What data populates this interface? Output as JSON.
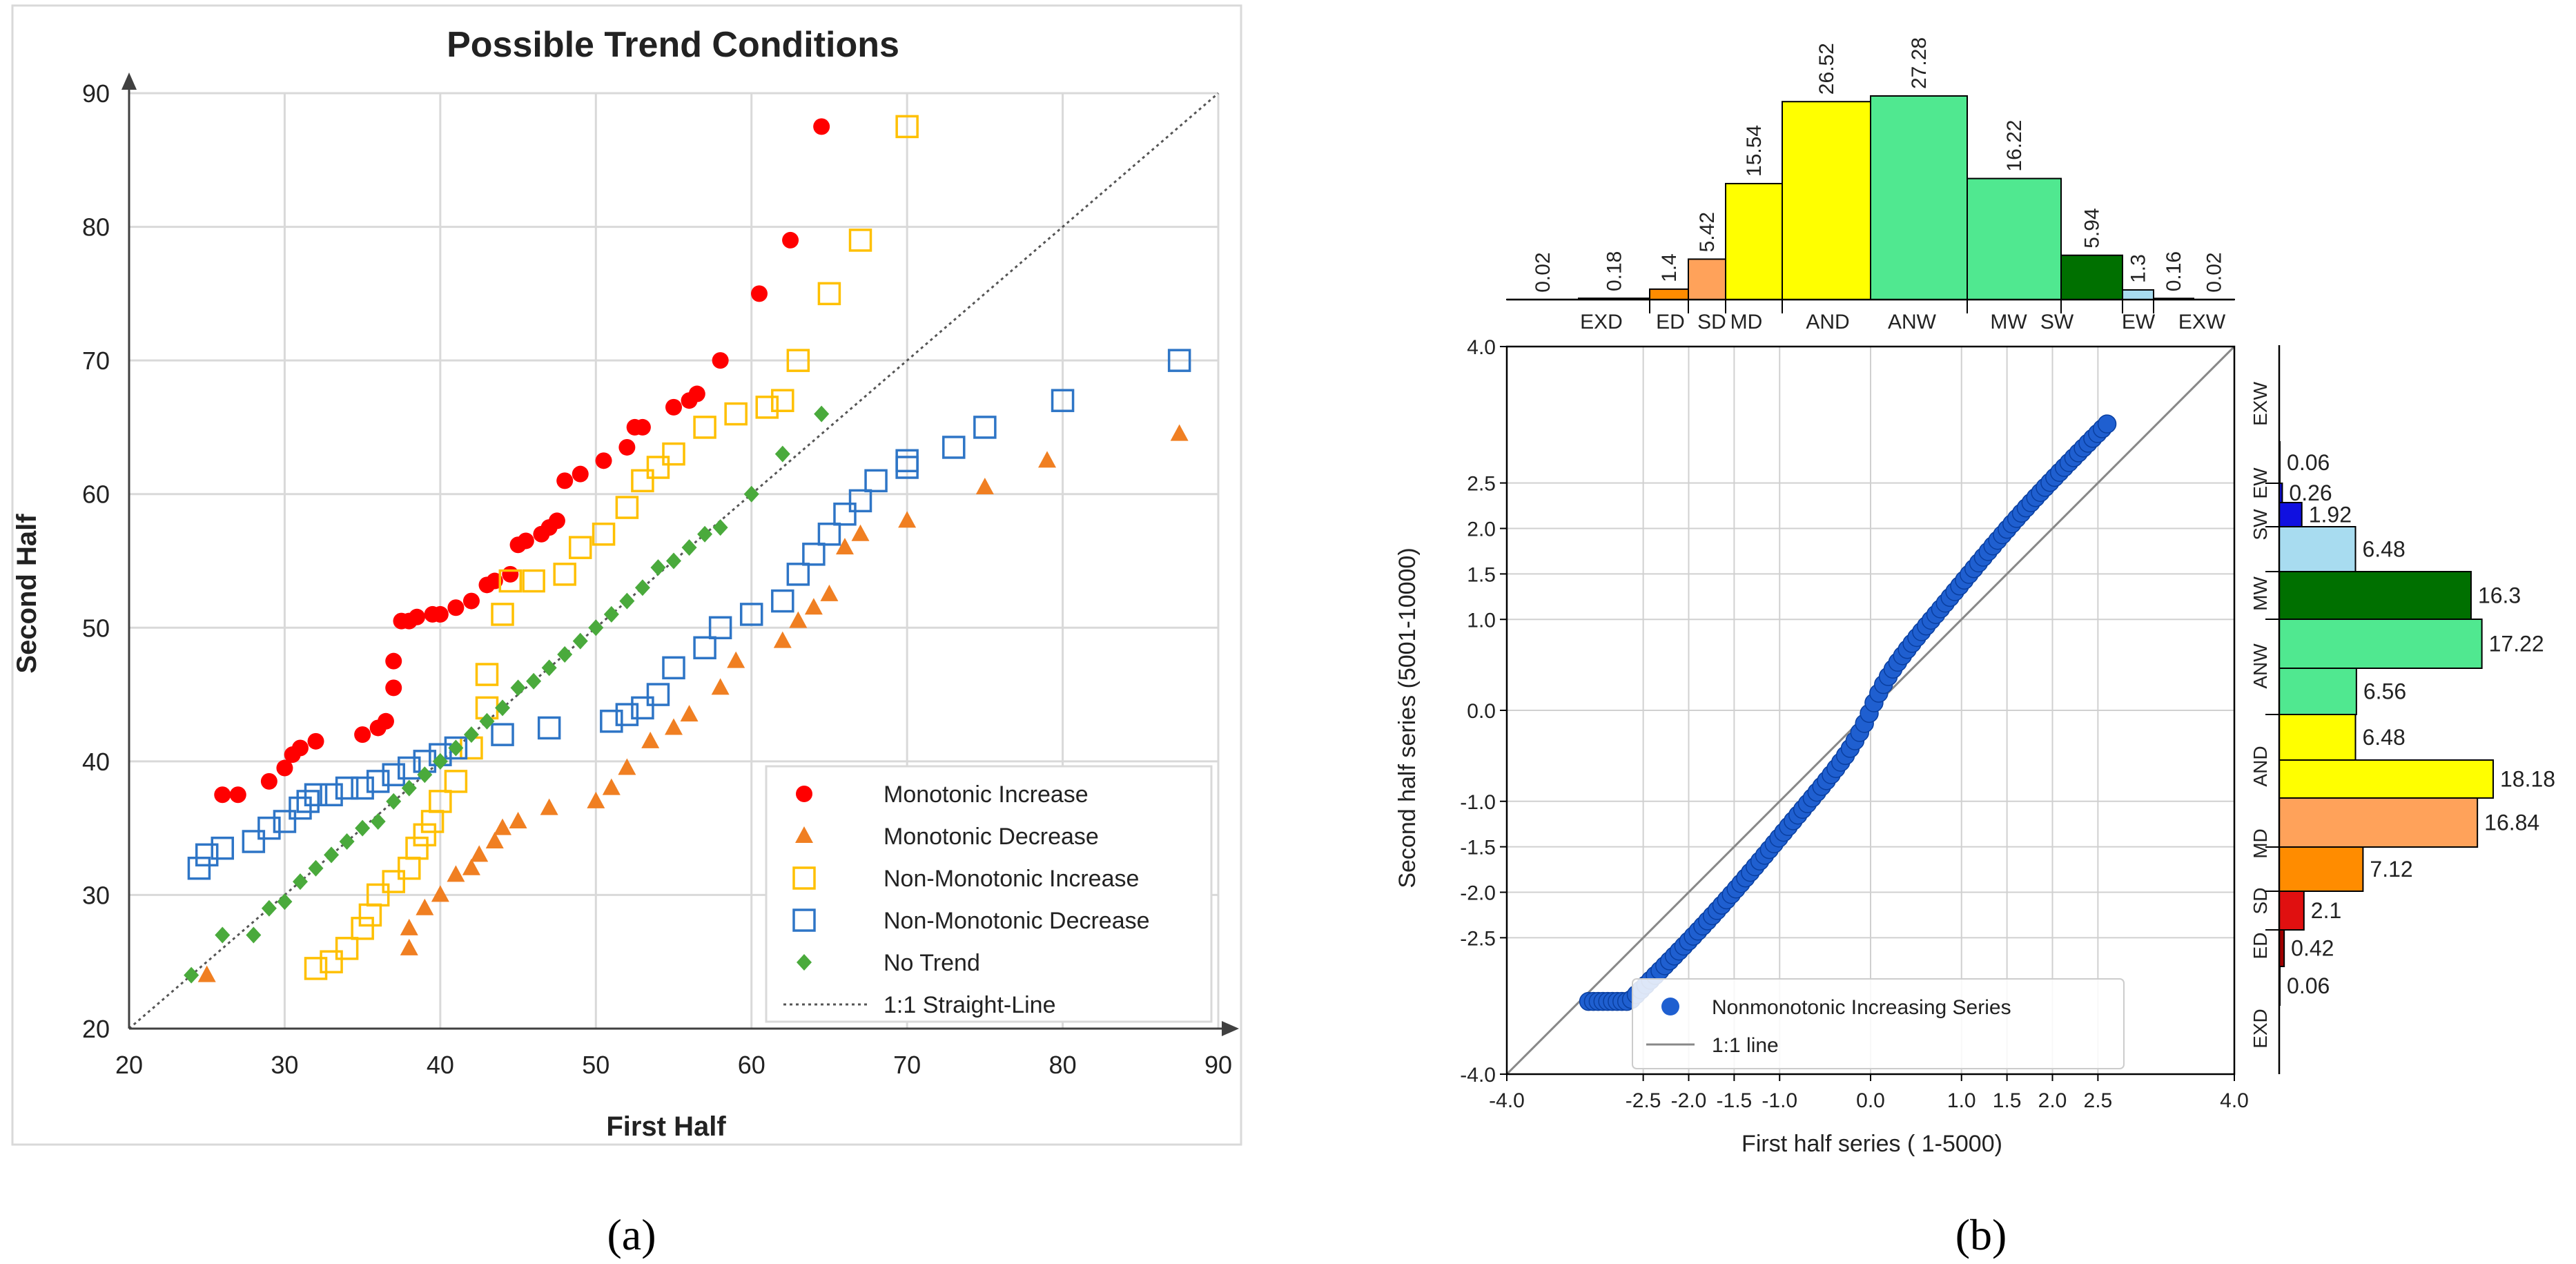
{
  "panel_labels": {
    "a": "(a)",
    "b": "(b)"
  },
  "chart_data": [
    {
      "type": "scatter",
      "title": "Possible Trend Conditions",
      "xlabel": "First Half",
      "ylabel": "Second Half",
      "xlim": [
        20,
        90
      ],
      "ylim": [
        20,
        90
      ],
      "xticks": [
        "20",
        "30",
        "40",
        "50",
        "60",
        "70",
        "80",
        "90"
      ],
      "yticks": [
        "20",
        "30",
        "40",
        "50",
        "60",
        "70",
        "80",
        "90"
      ],
      "grid": true,
      "legend_position": "bottom-right",
      "reference_line": {
        "name": "1:1 Straight-Line",
        "x": [
          20,
          90
        ],
        "y": [
          20,
          90
        ],
        "color": "#555555",
        "style": "dotted"
      },
      "series": [
        {
          "name": "Monotonic Increase",
          "marker": "circle",
          "color": "#ff0000",
          "points": [
            [
              26,
              37.5
            ],
            [
              27,
              37.5
            ],
            [
              29,
              38.5
            ],
            [
              30,
              39.5
            ],
            [
              30.5,
              40.5
            ],
            [
              31,
              41
            ],
            [
              32,
              41.5
            ],
            [
              35,
              42
            ],
            [
              36,
              42.5
            ],
            [
              36.5,
              43
            ],
            [
              37,
              45.5
            ],
            [
              37,
              47.5
            ],
            [
              37.5,
              50.5
            ],
            [
              38,
              50.5
            ],
            [
              38.5,
              50.8
            ],
            [
              39.5,
              51
            ],
            [
              40,
              51
            ],
            [
              41,
              51.5
            ],
            [
              42,
              52
            ],
            [
              43,
              53.2
            ],
            [
              43.5,
              53.5
            ],
            [
              44.5,
              54
            ],
            [
              45,
              56.2
            ],
            [
              45.5,
              56.5
            ],
            [
              46.5,
              57
            ],
            [
              47,
              57.5
            ],
            [
              47.5,
              58
            ],
            [
              48,
              61
            ],
            [
              49,
              61.5
            ],
            [
              50.5,
              62.5
            ],
            [
              52,
              63.5
            ],
            [
              52.5,
              65
            ],
            [
              53,
              65
            ],
            [
              55,
              66.5
            ],
            [
              56,
              67
            ],
            [
              56.5,
              67.5
            ],
            [
              58,
              70
            ],
            [
              60.5,
              75
            ],
            [
              62.5,
              79
            ],
            [
              64.5,
              87.5
            ]
          ]
        },
        {
          "name": "Monotonic Decrease",
          "marker": "triangle",
          "color": "#f07f22",
          "points": [
            [
              25,
              24
            ],
            [
              38,
              26
            ],
            [
              38,
              27.5
            ],
            [
              39,
              29
            ],
            [
              40,
              30
            ],
            [
              41,
              31.5
            ],
            [
              42,
              32
            ],
            [
              42.5,
              33
            ],
            [
              43.5,
              34
            ],
            [
              44,
              35
            ],
            [
              45,
              35.5
            ],
            [
              47,
              36.5
            ],
            [
              50,
              37
            ],
            [
              51,
              38
            ],
            [
              52,
              39.5
            ],
            [
              53.5,
              41.5
            ],
            [
              55,
              42.5
            ],
            [
              56,
              43.5
            ],
            [
              58,
              45.5
            ],
            [
              59,
              47.5
            ],
            [
              62,
              49
            ],
            [
              63,
              50.5
            ],
            [
              64,
              51.5
            ],
            [
              65,
              52.5
            ],
            [
              66,
              56
            ],
            [
              67,
              57
            ],
            [
              70,
              58
            ],
            [
              75,
              60.5
            ],
            [
              79,
              62.5
            ],
            [
              87.5,
              64.5
            ]
          ]
        },
        {
          "name": "Non-Monotonic Increase",
          "marker": "square",
          "color": "#ffc000",
          "points": [
            [
              32,
              24.5
            ],
            [
              33,
              25
            ],
            [
              34,
              26
            ],
            [
              35,
              27.5
            ],
            [
              35.5,
              28.5
            ],
            [
              36,
              30
            ],
            [
              37,
              31
            ],
            [
              38,
              32
            ],
            [
              38.5,
              33.5
            ],
            [
              39,
              34.5
            ],
            [
              39.5,
              35.5
            ],
            [
              40,
              37
            ],
            [
              41,
              38.5
            ],
            [
              42,
              41
            ],
            [
              43,
              44
            ],
            [
              43,
              46.5
            ],
            [
              44,
              51
            ],
            [
              44.5,
              53.5
            ],
            [
              46,
              53.5
            ],
            [
              48,
              54
            ],
            [
              49,
              56
            ],
            [
              50.5,
              57
            ],
            [
              52,
              59
            ],
            [
              53,
              61
            ],
            [
              54,
              62
            ],
            [
              55,
              63
            ],
            [
              57,
              65
            ],
            [
              59,
              66
            ],
            [
              61,
              66.5
            ],
            [
              62,
              67
            ],
            [
              63,
              70
            ],
            [
              65,
              75
            ],
            [
              67,
              79
            ],
            [
              70,
              87.5
            ]
          ]
        },
        {
          "name": "Non-Monotonic Decrease",
          "marker": "square",
          "color": "#2e75c6",
          "points": [
            [
              24.5,
              32
            ],
            [
              25,
              33
            ],
            [
              26,
              33.5
            ],
            [
              28,
              34
            ],
            [
              29,
              35
            ],
            [
              30,
              35.5
            ],
            [
              31,
              36.5
            ],
            [
              31.5,
              37
            ],
            [
              32,
              37.5
            ],
            [
              33,
              37.5
            ],
            [
              34,
              38
            ],
            [
              35,
              38
            ],
            [
              36,
              38.5
            ],
            [
              37,
              39
            ],
            [
              38,
              39.5
            ],
            [
              39,
              40
            ],
            [
              40,
              40.5
            ],
            [
              41,
              41
            ],
            [
              44,
              42
            ],
            [
              47,
              42.5
            ],
            [
              51,
              43
            ],
            [
              52,
              43.5
            ],
            [
              53,
              44
            ],
            [
              54,
              45
            ],
            [
              55,
              47
            ],
            [
              57,
              48.5
            ],
            [
              58,
              50
            ],
            [
              60,
              51
            ],
            [
              62,
              52
            ],
            [
              63,
              54
            ],
            [
              64,
              55.5
            ],
            [
              65,
              57
            ],
            [
              66,
              58.5
            ],
            [
              67,
              59.5
            ],
            [
              68,
              61
            ],
            [
              70,
              62
            ],
            [
              70,
              62.5
            ],
            [
              73,
              63.5
            ],
            [
              75,
              65
            ],
            [
              80,
              67
            ],
            [
              87.5,
              70
            ]
          ]
        },
        {
          "name": "No Trend",
          "marker": "diamond",
          "color": "#4aaa3c",
          "points": [
            [
              24,
              24
            ],
            [
              26,
              27
            ],
            [
              28,
              27
            ],
            [
              29,
              29
            ],
            [
              30,
              29.5
            ],
            [
              31,
              31
            ],
            [
              32,
              32
            ],
            [
              33,
              33
            ],
            [
              34,
              34
            ],
            [
              35,
              35
            ],
            [
              36,
              35.5
            ],
            [
              37,
              37
            ],
            [
              38,
              38
            ],
            [
              39,
              39
            ],
            [
              40,
              40
            ],
            [
              41,
              41
            ],
            [
              42,
              42
            ],
            [
              43,
              43
            ],
            [
              44,
              44
            ],
            [
              45,
              45.5
            ],
            [
              46,
              46
            ],
            [
              47,
              47
            ],
            [
              48,
              48
            ],
            [
              49,
              49
            ],
            [
              50,
              50
            ],
            [
              51,
              51
            ],
            [
              52,
              52
            ],
            [
              53,
              53
            ],
            [
              54,
              54.5
            ],
            [
              55,
              55
            ],
            [
              56,
              56
            ],
            [
              57,
              57
            ],
            [
              58,
              57.5
            ],
            [
              60,
              60
            ],
            [
              62,
              63
            ],
            [
              64.5,
              66
            ]
          ]
        }
      ]
    },
    {
      "type": "scatter",
      "xlabel": "First half series ( 1-5000)",
      "ylabel": "Second half series (5001-10000)",
      "xlim": [
        -4.0,
        4.0
      ],
      "ylim": [
        -4.0,
        4.0
      ],
      "xticks": [
        "-4.0",
        "-2.5",
        "-2.0",
        "-1.5",
        "-1.0",
        "0.0",
        "1.0",
        "1.5",
        "2.0",
        "2.5",
        "4.0"
      ],
      "yticks": [
        "-4.0",
        "-2.5",
        "-2.0",
        "-1.5",
        "-1.0",
        "0.0",
        "1.0",
        "1.5",
        "2.0",
        "2.5",
        "4.0"
      ],
      "grid": true,
      "legend_position": "bottom-left",
      "legend": [
        "Nonmonotonic Increasing Series",
        "1:1 line"
      ],
      "qq_series": {
        "name": "Nonmonotonic Increasing Series",
        "color": "#1f5fd0",
        "x_range": [
          -3.1,
          2.6
        ]
      },
      "reference_line": {
        "name": "1:1 line",
        "x": [
          -4,
          4
        ],
        "y": [
          -4,
          4
        ],
        "color": "#888888"
      },
      "top_histogram": {
        "class_labels": [
          "EXD",
          "ED",
          "SD",
          "MD",
          "AND",
          "ANW",
          "MW",
          "SW",
          "EW",
          "EXW"
        ],
        "bars": [
          {
            "value": 0.02,
            "color": "#5a0000"
          },
          {
            "value": 0.18,
            "color": "#e01010"
          },
          {
            "value": 1.4,
            "color": "#ff8c00"
          },
          {
            "value": 5.42,
            "color": "#ffa25a"
          },
          {
            "value": 15.54,
            "color": "#ffff00"
          },
          {
            "value": 26.52,
            "color": "#ffff00"
          },
          {
            "value": 27.28,
            "color": "#50e890"
          },
          {
            "value": 16.22,
            "color": "#50e890"
          },
          {
            "value": 5.94,
            "color": "#007000"
          },
          {
            "value": 1.3,
            "color": "#a8dcf0"
          },
          {
            "value": 0.16,
            "color": "#1010e0"
          },
          {
            "value": 0.02,
            "color": "#10107a"
          }
        ],
        "value_labels": [
          "0.02",
          "0.18",
          "1.4",
          "5.42",
          "15.54",
          "26.52",
          "27.28",
          "16.22",
          "5.94",
          "1.3",
          "0.16",
          "0.02"
        ]
      },
      "right_histogram": {
        "class_labels": [
          "EXW",
          "EW",
          "SW",
          "MW",
          "ANW",
          "AND",
          "MD",
          "SD",
          "ED",
          "EXD"
        ],
        "bars": [
          {
            "value": 0.06,
            "color": "#10107a"
          },
          {
            "value": 0.26,
            "color": "#1010e0"
          },
          {
            "value": 1.92,
            "color": "#1010e0"
          },
          {
            "value": 6.48,
            "color": "#a8dcf0"
          },
          {
            "value": 16.3,
            "color": "#007000"
          },
          {
            "value": 17.22,
            "color": "#50e890"
          },
          {
            "value": 6.56,
            "color": "#50e890"
          },
          {
            "value": 6.48,
            "color": "#ffff00"
          },
          {
            "value": 18.18,
            "color": "#ffff00"
          },
          {
            "value": 16.84,
            "color": "#ffa25a"
          },
          {
            "value": 7.12,
            "color": "#ff8c00"
          },
          {
            "value": 2.1,
            "color": "#e01010"
          },
          {
            "value": 0.42,
            "color": "#a00000"
          },
          {
            "value": 0.06,
            "color": "#5a0000"
          }
        ],
        "value_labels": [
          "0.06",
          "0.26",
          "1.92",
          "6.48",
          "16.3",
          "17.22",
          "6.56",
          "6.48",
          "18.18",
          "16.84",
          "7.12",
          "2.1",
          "0.42",
          "0.06"
        ]
      }
    }
  ]
}
